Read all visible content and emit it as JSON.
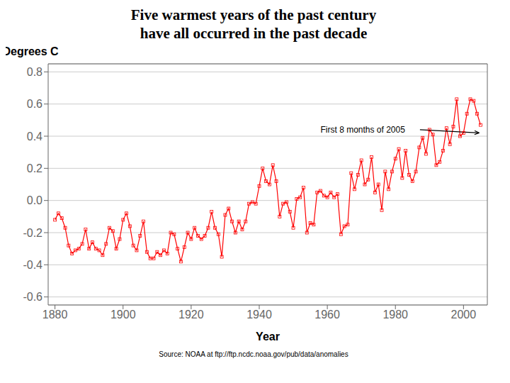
{
  "chart_data": {
    "type": "line",
    "title": "Five warmest years of the past century",
    "subtitle": "have all occurred in the past decade",
    "xlabel": "Year",
    "ylabel": "Degrees C",
    "source": "Source: NOAA at ftp://ftp.ncdc.noaa.gov/pub/data/anomalies",
    "annotations": [
      {
        "text": "First 8 months of 2005",
        "x": 2005,
        "y": 0.42,
        "text_x": 1958,
        "text_y": 0.44
      }
    ],
    "x": [
      1880,
      1881,
      1882,
      1883,
      1884,
      1885,
      1886,
      1887,
      1888,
      1889,
      1890,
      1891,
      1892,
      1893,
      1894,
      1895,
      1896,
      1897,
      1898,
      1899,
      1900,
      1901,
      1902,
      1903,
      1904,
      1905,
      1906,
      1907,
      1908,
      1909,
      1910,
      1911,
      1912,
      1913,
      1914,
      1915,
      1916,
      1917,
      1918,
      1919,
      1920,
      1921,
      1922,
      1923,
      1924,
      1925,
      1926,
      1927,
      1928,
      1929,
      1930,
      1931,
      1932,
      1933,
      1934,
      1935,
      1936,
      1937,
      1938,
      1939,
      1940,
      1941,
      1942,
      1943,
      1944,
      1945,
      1946,
      1947,
      1948,
      1949,
      1950,
      1951,
      1952,
      1953,
      1954,
      1955,
      1956,
      1957,
      1958,
      1959,
      1960,
      1961,
      1962,
      1963,
      1964,
      1965,
      1966,
      1967,
      1968,
      1969,
      1970,
      1971,
      1972,
      1973,
      1974,
      1975,
      1976,
      1977,
      1978,
      1979,
      1980,
      1981,
      1982,
      1983,
      1984,
      1985,
      1986,
      1987,
      1988,
      1989,
      1990,
      1991,
      1992,
      1993,
      1994,
      1995,
      1996,
      1997,
      1998,
      1999,
      2000,
      2001,
      2002,
      2003,
      2004,
      2005
    ],
    "values": [
      -0.12,
      -0.08,
      -0.11,
      -0.17,
      -0.28,
      -0.33,
      -0.31,
      -0.3,
      -0.27,
      -0.18,
      -0.3,
      -0.26,
      -0.3,
      -0.31,
      -0.34,
      -0.27,
      -0.17,
      -0.19,
      -0.3,
      -0.24,
      -0.12,
      -0.08,
      -0.16,
      -0.28,
      -0.31,
      -0.22,
      -0.13,
      -0.32,
      -0.36,
      -0.36,
      -0.32,
      -0.34,
      -0.31,
      -0.33,
      -0.2,
      -0.21,
      -0.3,
      -0.38,
      -0.29,
      -0.2,
      -0.24,
      -0.17,
      -0.22,
      -0.24,
      -0.22,
      -0.17,
      -0.07,
      -0.17,
      -0.21,
      -0.35,
      -0.09,
      -0.05,
      -0.13,
      -0.2,
      -0.13,
      -0.18,
      -0.13,
      -0.02,
      -0.01,
      -0.02,
      0.09,
      0.2,
      0.12,
      0.1,
      0.22,
      0.12,
      -0.1,
      -0.02,
      -0.01,
      -0.07,
      -0.17,
      0.01,
      0.02,
      0.08,
      -0.2,
      -0.14,
      -0.15,
      0.05,
      0.06,
      0.03,
      0.02,
      0.05,
      0.02,
      0.04,
      -0.21,
      -0.16,
      -0.15,
      0.17,
      0.07,
      0.16,
      0.25,
      0.1,
      0.13,
      0.27,
      0.05,
      0.1,
      -0.06,
      0.18,
      0.07,
      0.18,
      0.26,
      0.32,
      0.14,
      0.31,
      0.16,
      0.12,
      0.18,
      0.33,
      0.39,
      0.29,
      0.44,
      0.41,
      0.22,
      0.24,
      0.31,
      0.45,
      0.35,
      0.46,
      0.63,
      0.4,
      0.42,
      0.54,
      0.63,
      0.62,
      0.54,
      0.47
    ],
    "color": "#ff0000",
    "marker": "square",
    "xlim": [
      1878,
      2007
    ],
    "ylim": [
      -0.65,
      0.85
    ],
    "xticks": [
      1880,
      1900,
      1920,
      1940,
      1960,
      1980,
      2000
    ],
    "yticks": [
      -0.6,
      -0.4,
      -0.2,
      {
        "value": 0,
        "label": "0.0"
      },
      0.2,
      0.4,
      0.6,
      0.8
    ],
    "grid": true
  }
}
